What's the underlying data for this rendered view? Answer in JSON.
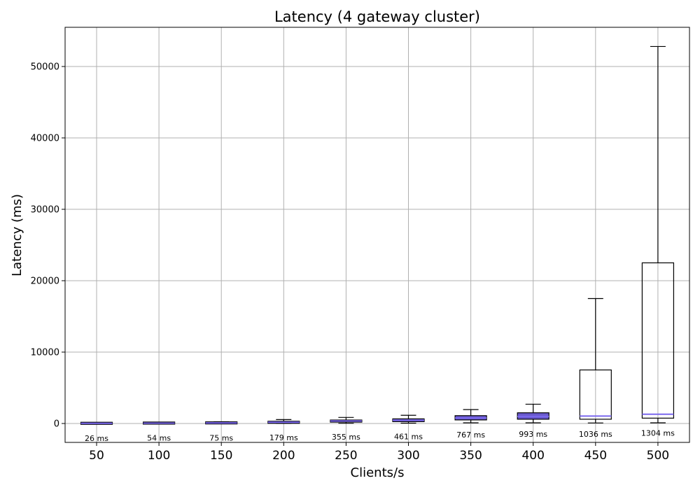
{
  "chart_data": {
    "type": "box",
    "title": "Latency (4 gateway cluster)",
    "xlabel": "Clients/s",
    "ylabel": "Latency (ms)",
    "ylim": [
      -2600,
      55500
    ],
    "yticks": [
      0,
      10000,
      20000,
      30000,
      40000,
      50000
    ],
    "grid": true,
    "colors": {
      "box_edge": "#000000",
      "box_fill": "#6a5acd",
      "median": "#7b68ee",
      "grid": "#b0b0b0"
    },
    "categories": [
      "50",
      "100",
      "150",
      "200",
      "250",
      "300",
      "350",
      "400",
      "450",
      "500"
    ],
    "boxes": [
      {
        "x": "50",
        "whislo": 5,
        "q1": 15,
        "med": 26,
        "q3": 40,
        "whishi": 70,
        "label": "26 ms"
      },
      {
        "x": "100",
        "whislo": 20,
        "q1": 40,
        "med": 54,
        "q3": 75,
        "whishi": 120,
        "label": "54 ms"
      },
      {
        "x": "150",
        "whislo": 20,
        "q1": 50,
        "med": 75,
        "q3": 120,
        "whishi": 250,
        "label": "75 ms"
      },
      {
        "x": "200",
        "whislo": 10,
        "q1": 80,
        "med": 179,
        "q3": 260,
        "whishi": 550,
        "label": "179 ms"
      },
      {
        "x": "250",
        "whislo": 30,
        "q1": 200,
        "med": 355,
        "q3": 480,
        "whishi": 850,
        "label": "355 ms"
      },
      {
        "x": "300",
        "whislo": 50,
        "q1": 260,
        "med": 461,
        "q3": 650,
        "whishi": 1150,
        "label": "461 ms"
      },
      {
        "x": "350",
        "whislo": 100,
        "q1": 500,
        "med": 767,
        "q3": 1100,
        "whishi": 1950,
        "label": "767 ms"
      },
      {
        "x": "400",
        "whislo": 100,
        "q1": 600,
        "med": 993,
        "q3": 1500,
        "whishi": 2700,
        "label": "993 ms"
      },
      {
        "x": "450",
        "whislo": 80,
        "q1": 600,
        "med": 1036,
        "q3": 7500,
        "whishi": 17500,
        "label": "1036 ms"
      },
      {
        "x": "500",
        "whislo": 100,
        "q1": 750,
        "med": 1304,
        "q3": 22500,
        "whishi": 52800,
        "label": "1304 ms"
      }
    ]
  }
}
